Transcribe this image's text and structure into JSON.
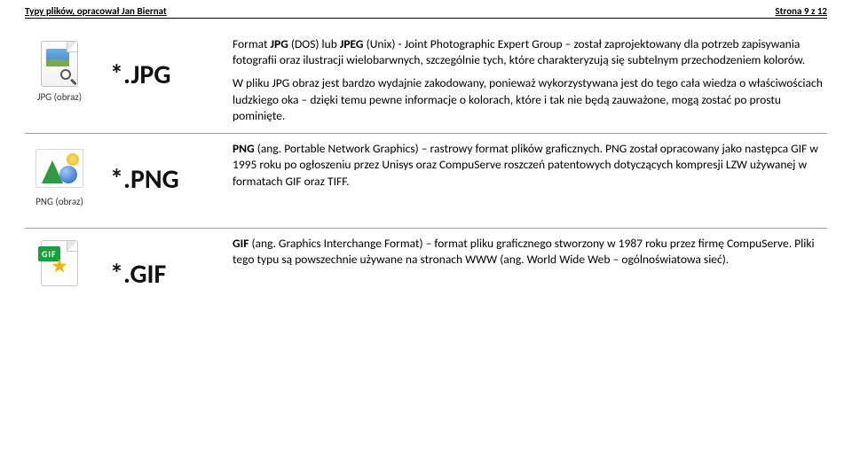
{
  "header": {
    "left": "Typy plików, opracował Jan Biernat",
    "right": "Strona 9 z 12"
  },
  "jpg": {
    "ext": "*.JPG",
    "icon_caption": "JPG (obraz)",
    "p1_a": "Format ",
    "p1_b1": "JPG",
    "p1_c": " (DOS) lub ",
    "p1_b2": "JPEG",
    "p1_d": " (Unix) - Joint Photographic Expert Group – został zaprojektowany dla potrzeb zapisywania fotografii oraz ilustracji wielobarwnych, szczególnie tych, które charakteryzują się subtelnym przechodzeniem kolorów.",
    "p2": "W pliku JPG obraz jest bardzo wydajnie zakodowany, ponieważ wykorzystywana jest do tego cała wiedza o właściwościach ludzkiego oka – dzięki temu pewne informacje o kolorach, które i tak nie będą zauważone, mogą zostać po prostu pominięte."
  },
  "png": {
    "ext": "*.PNG",
    "icon_caption": "PNG (obraz)",
    "p1_b": "PNG",
    "p1_rest": " (ang. Portable Network Graphics) – rastrowy format plików graficznych. PNG został opracowany jako następca GIF w 1995 roku po ogłoszeniu przez Unisys oraz CompuServe roszczeń patentowych dotyczących kompresji LZW używanej w formatach GIF oraz TIFF."
  },
  "gif": {
    "ext": "*.GIF",
    "icon_caption": "",
    "p1_b": "GIF",
    "p1_rest": " (ang. Graphics Interchange Format) – format pliku graficznego stworzony w 1987 roku przez firmę CompuServe. Pliki tego typu są powszechnie używane na stronach WWW (ang. World Wide Web – ogólnoświatowa sieć)."
  }
}
